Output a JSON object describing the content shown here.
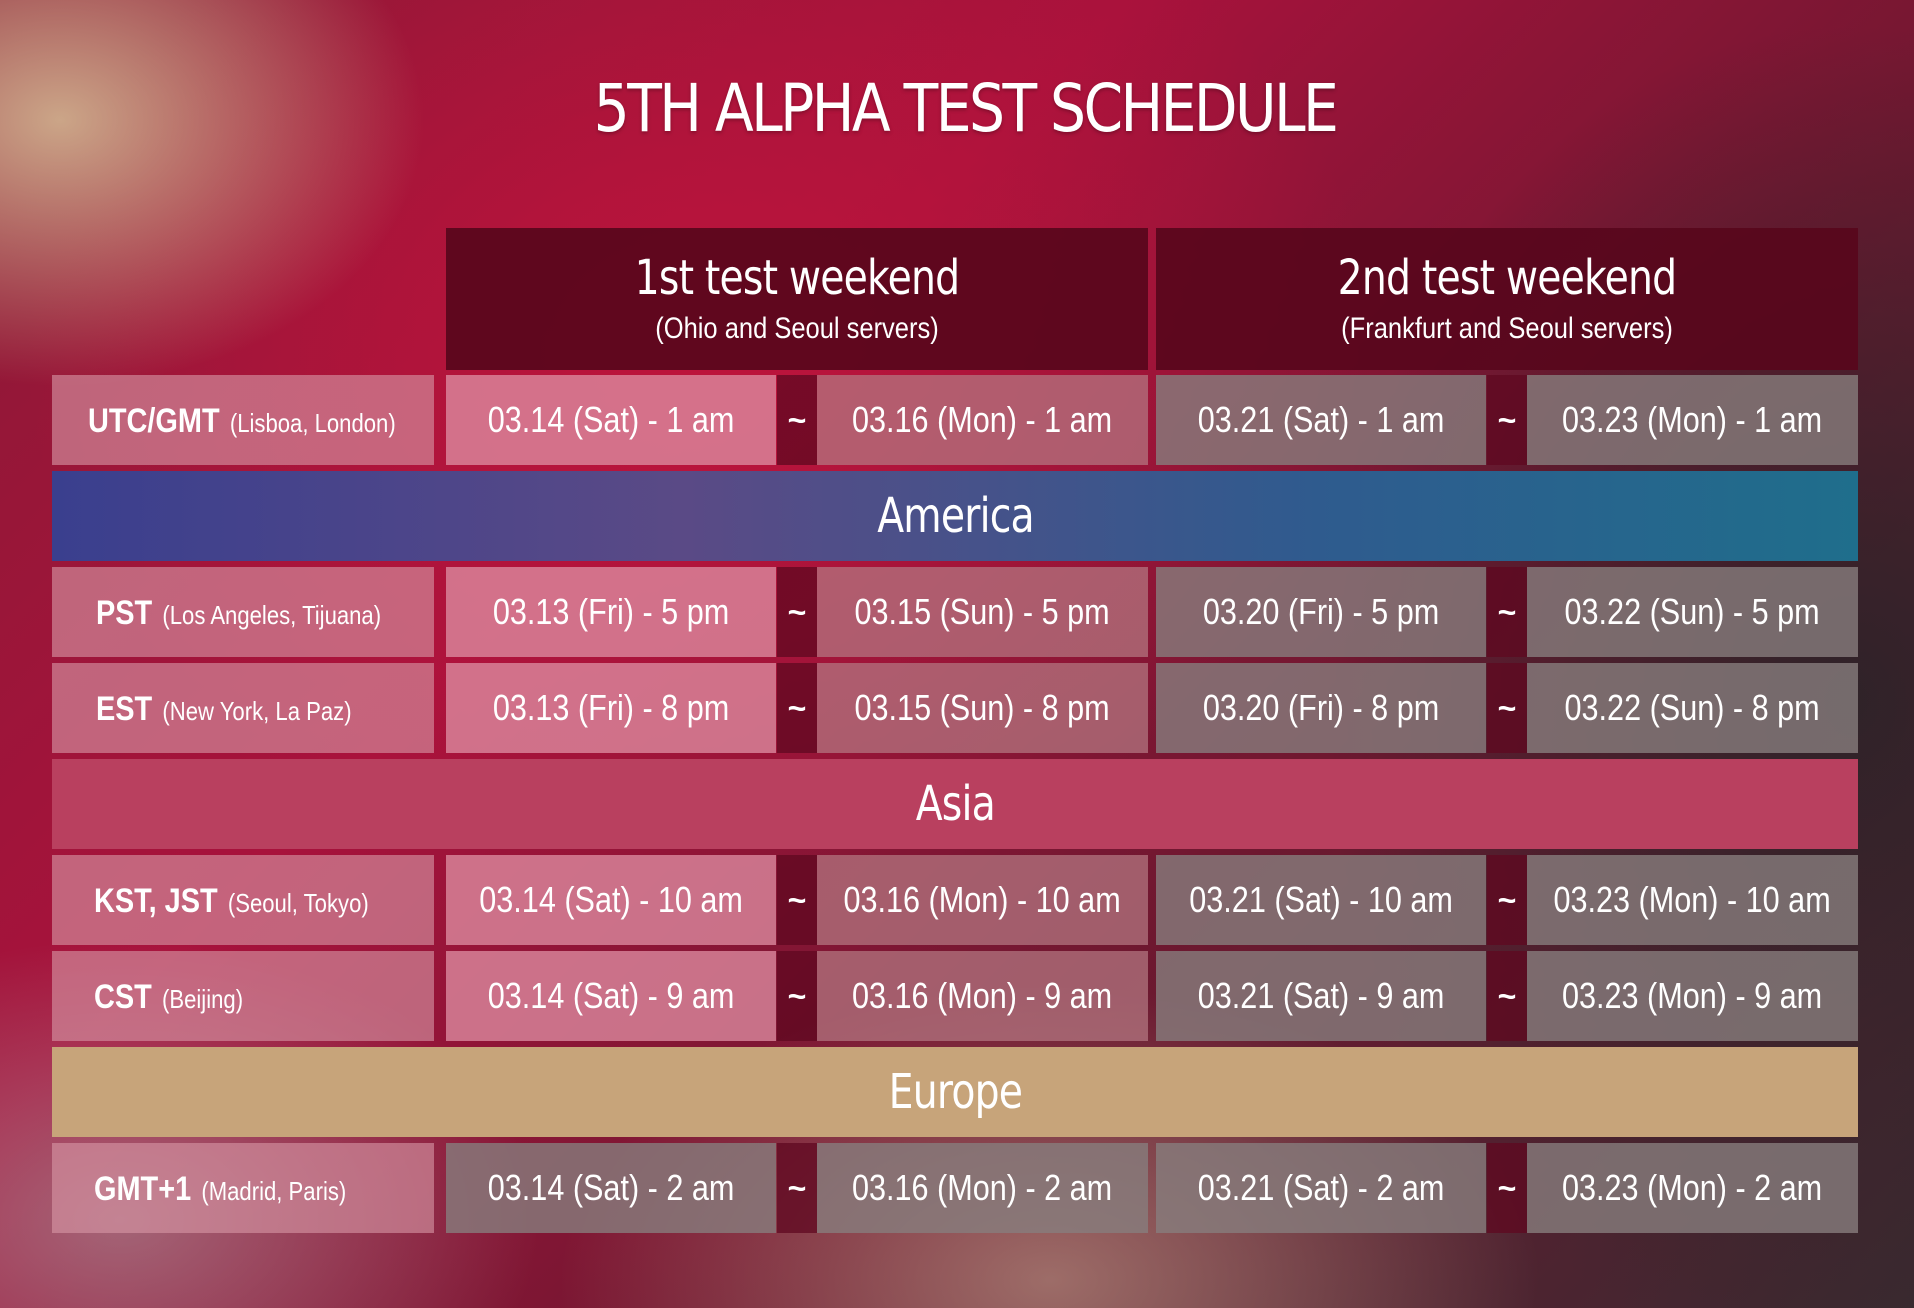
{
  "title": "5TH ALPHA TEST SCHEDULE",
  "weekends": [
    {
      "title": "1st test weekend",
      "servers": "(Ohio and Seoul servers)"
    },
    {
      "title": "2nd test weekend",
      "servers": "(Frankfurt and Seoul servers)"
    }
  ],
  "separator": "~",
  "regions": {
    "america": "America",
    "asia": "Asia",
    "europe": "Europe"
  },
  "region_colors": {
    "america": [
      "#2e3f8a",
      "#1f6e8c"
    ],
    "asia": "#b9405f",
    "europe": "#c7a47a"
  },
  "rows": {
    "utc": {
      "code": "UTC/GMT",
      "cities": "(Lisboa, London)",
      "times": [
        "03.14 (Sat) - 1 am",
        "03.16 (Mon) - 1 am",
        "03.21 (Sat) - 1 am",
        "03.23 (Mon) - 1 am"
      ]
    },
    "pst": {
      "code": "PST",
      "cities": "(Los Angeles, Tijuana)",
      "times": [
        "03.13 (Fri) - 5 pm",
        "03.15 (Sun) - 5 pm",
        "03.20 (Fri) - 5 pm",
        "03.22 (Sun) - 5 pm"
      ]
    },
    "est": {
      "code": "EST",
      "cities": "(New York, La Paz)",
      "times": [
        "03.13 (Fri) - 8 pm",
        "03.15 (Sun) - 8 pm",
        "03.20 (Fri) - 8 pm",
        "03.22 (Sun) - 8 pm"
      ]
    },
    "kst": {
      "code": "KST, JST",
      "cities": "(Seoul, Tokyo)",
      "times": [
        "03.14 (Sat) - 10 am",
        "03.16 (Mon) - 10 am",
        "03.21 (Sat) - 10 am",
        "03.23 (Mon) - 10 am"
      ]
    },
    "cst": {
      "code": "CST",
      "cities": "(Beijing)",
      "times": [
        "03.14 (Sat) - 9 am",
        "03.16 (Mon) - 9 am",
        "03.21 (Sat) - 9 am",
        "03.23 (Mon) - 9 am"
      ]
    },
    "gmt1": {
      "code": "GMT+1",
      "cities": "(Madrid, Paris)",
      "times": [
        "03.14 (Sat) - 2 am",
        "03.16 (Mon) - 2 am",
        "03.21 (Sat) - 2 am",
        "03.23 (Mon) - 2 am"
      ]
    }
  }
}
